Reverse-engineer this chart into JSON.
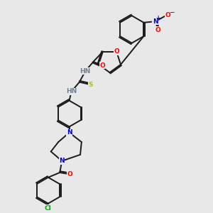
{
  "background_color": "#e8e8e8",
  "fig_size": [
    3.0,
    3.0
  ],
  "dpi": 100,
  "bond_color": "#1a1a1a",
  "atom_colors": {
    "O": "#ff0000",
    "N": "#0000dd",
    "S": "#bbbb00",
    "Cl": "#00aa00",
    "NH": "#708090",
    "H": "#708090"
  },
  "lw": 1.4,
  "font_size": 6.5
}
